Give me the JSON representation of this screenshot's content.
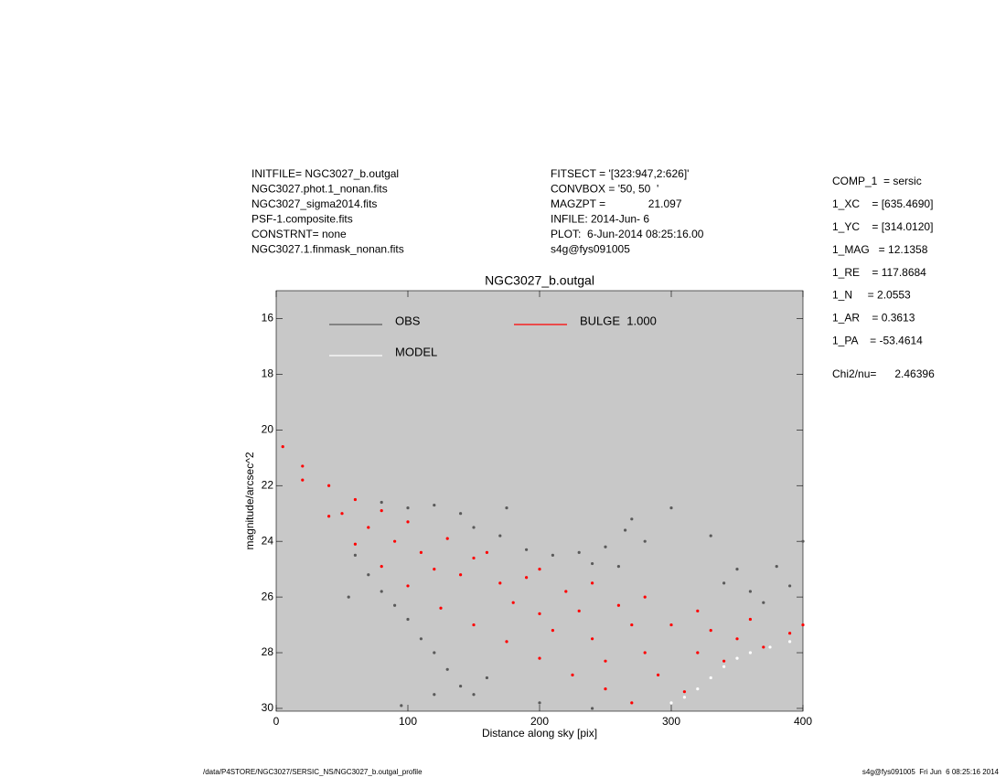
{
  "header": {
    "left": [
      "INITFILE= NGC3027_b.outgal",
      "NGC3027.phot.1_nonan.fits",
      "NGC3027_sigma2014.fits",
      "PSF-1.composite.fits",
      "CONSTRNT= none",
      "NGC3027.1.finmask_nonan.fits"
    ],
    "middle": [
      "FITSECT = '[323:947,2:626]'",
      "CONVBOX = '50, 50  '",
      "MAGZPT =              21.097",
      "INFILE: 2014-Jun- 6",
      "PLOT:  6-Jun-2014 08:25:16.00",
      "s4g@fys091005"
    ],
    "right": [
      "COMP_1  = sersic",
      "1_XC    = [635.4690]",
      "1_YC    = [314.0120]",
      "1_MAG   = 12.1358",
      "1_RE    = 117.8684",
      "1_N     = 2.0553",
      "1_AR    = 0.3613",
      "1_PA    = -53.4614",
      "Chi2/nu=      2.46396"
    ]
  },
  "footer": {
    "left": "/data/P4STORE/NGC3027/SERSIC_NS/NGC3027_b.outgal_profile",
    "right": "s4g@fys091005  Fri Jun  6 08:25:16 2014"
  },
  "chart_data": {
    "type": "scatter",
    "title": "NGC3027_b.outgal",
    "xlabel": "Distance along sky [pix]",
    "ylabel": "magnitude/arcsec^2",
    "xlim": [
      0,
      400
    ],
    "ylim": [
      30.1,
      15
    ],
    "xticks": [
      0,
      100,
      200,
      300,
      400
    ],
    "yticks": [
      16,
      18,
      20,
      22,
      24,
      26,
      28,
      30
    ],
    "background": "#c8c8c8",
    "series": [
      {
        "name": "OBS",
        "color": "#5a5a5a",
        "x": [
          60,
          70,
          80,
          90,
          100,
          110,
          120,
          130,
          140,
          150,
          160,
          95,
          80,
          100,
          120,
          140,
          150,
          170,
          190,
          210,
          230,
          240,
          250,
          260,
          265,
          270,
          280,
          55,
          330,
          340,
          350,
          360,
          370,
          380,
          390,
          400,
          240,
          120,
          200,
          300,
          175
        ],
        "values": [
          24.5,
          25.2,
          25.8,
          26.3,
          26.8,
          27.5,
          28.0,
          28.6,
          29.2,
          29.5,
          28.9,
          29.9,
          22.6,
          22.8,
          22.7,
          23.0,
          23.5,
          23.8,
          24.3,
          24.5,
          24.4,
          24.8,
          24.2,
          24.9,
          23.6,
          23.2,
          24.0,
          26.0,
          23.8,
          25.5,
          25.0,
          25.8,
          26.2,
          24.9,
          25.6,
          24.0,
          30.0,
          29.5,
          29.8,
          22.8,
          22.8
        ]
      },
      {
        "name": "MODEL",
        "color": "#ffffff",
        "x": [
          300,
          310,
          320,
          330,
          340,
          350,
          360,
          375,
          390
        ],
        "values": [
          29.8,
          29.6,
          29.3,
          28.9,
          28.5,
          28.2,
          28.0,
          27.8,
          27.6
        ]
      },
      {
        "name": "BULGE  1.000",
        "color": "#ff0000",
        "x": [
          5,
          20,
          40,
          60,
          80,
          100,
          130,
          160,
          200,
          240,
          280,
          320,
          360,
          400,
          20,
          40,
          60,
          80,
          100,
          125,
          150,
          175,
          200,
          225,
          250,
          270,
          50,
          70,
          90,
          110,
          120,
          140,
          150,
          170,
          180,
          190,
          200,
          210,
          220,
          230,
          240,
          250,
          260,
          270,
          280,
          290,
          300,
          310,
          320,
          330,
          340,
          350,
          370,
          390
        ],
        "values": [
          20.6,
          21.3,
          22.0,
          22.5,
          22.9,
          23.3,
          23.9,
          24.4,
          25.0,
          25.5,
          26.0,
          26.5,
          26.8,
          27.0,
          21.8,
          23.1,
          24.1,
          24.9,
          25.6,
          26.4,
          27.0,
          27.6,
          28.2,
          28.8,
          29.3,
          29.8,
          23.0,
          23.5,
          24.0,
          24.4,
          25.0,
          25.2,
          24.6,
          25.5,
          26.2,
          25.3,
          26.6,
          27.2,
          25.8,
          26.5,
          27.5,
          28.3,
          26.3,
          27.0,
          28.0,
          28.8,
          27.0,
          29.4,
          28.0,
          27.2,
          28.3,
          27.5,
          27.8,
          27.3
        ]
      }
    ]
  }
}
